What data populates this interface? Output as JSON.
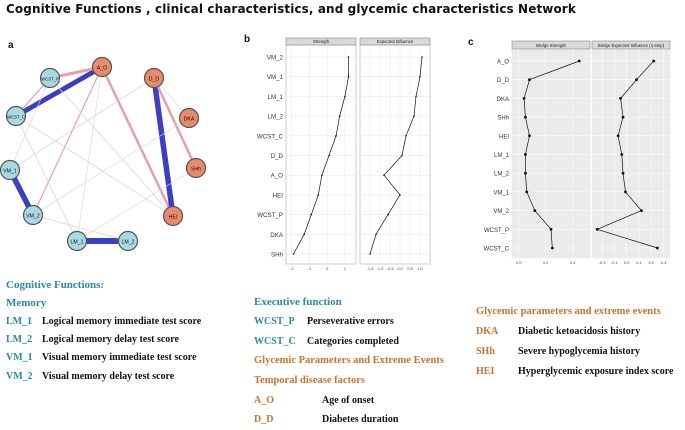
{
  "title": "Cognitive Functions , clinical characteristics, and glycemic characteristics Network",
  "panels": {
    "a": "a",
    "b": "b",
    "c": "c"
  },
  "network": {
    "nodes": [
      {
        "id": "a_o",
        "label": "A_O",
        "group": "glycemic"
      },
      {
        "id": "d_d",
        "label": "D_D",
        "group": "glycemic"
      },
      {
        "id": "dka",
        "label": "DKA",
        "group": "glycemic"
      },
      {
        "id": "shh",
        "label": "SHh",
        "group": "glycemic"
      },
      {
        "id": "hei",
        "label": "HEI",
        "group": "glycemic"
      },
      {
        "id": "lm2",
        "label": "LM_2",
        "group": "cognitive"
      },
      {
        "id": "lm1",
        "label": "LM_1",
        "group": "cognitive"
      },
      {
        "id": "vm2",
        "label": "VM_2",
        "group": "cognitive"
      },
      {
        "id": "vm1",
        "label": "VM_1",
        "group": "cognitive"
      },
      {
        "id": "wcstc",
        "label": "WCST_C",
        "group": "cognitive"
      },
      {
        "id": "wcstp",
        "label": "WCST_P",
        "group": "cognitive"
      }
    ],
    "colors": {
      "cognitive": "#a9d9e3",
      "glycemic": "#e98a6b",
      "positive": "#3b3fc4",
      "negative": "#e3a1ad",
      "weak": "#d6d6dc"
    }
  },
  "chart_data": [
    {
      "type": "line",
      "facets": [
        "Strength",
        "Expected Influence"
      ],
      "categories": [
        "VM_2",
        "VM_1",
        "LM_1",
        "LM_2",
        "WCST_C",
        "D_D",
        "A_O",
        "HEI",
        "WCST_P",
        "DKA",
        "SHh"
      ],
      "series": [
        {
          "name": "Strength",
          "values": [
            1.2,
            1.2,
            1.0,
            0.7,
            0.5,
            0.1,
            -0.3,
            -0.5,
            -0.9,
            -1.3,
            -1.9
          ]
        },
        {
          "name": "Expected Influence",
          "values": [
            1.1,
            1.0,
            0.8,
            0.7,
            0.3,
            0.1,
            -0.8,
            0.0,
            -0.6,
            -1.2,
            -1.5
          ]
        }
      ],
      "xticks": {
        "Strength": [
          "-2",
          "-1",
          "0",
          "1"
        ],
        "Expected Influence": [
          "-1.5",
          "-1.0",
          "-0.5",
          "0.0",
          "0.5",
          "1.0"
        ]
      },
      "xlim": {
        "Strength": [
          -2.1,
          1.4
        ],
        "Expected Influence": [
          -1.8,
          1.3
        ]
      }
    },
    {
      "type": "line",
      "facets": [
        "Bridge Strength",
        "Bridge Expected Influence (1-step)"
      ],
      "categories": [
        "A_O",
        "D_D",
        "DKA",
        "SHh",
        "HEI",
        "LM_1",
        "LM_2",
        "VM_1",
        "VM_2",
        "WCST_P",
        "WCST_C"
      ],
      "series": [
        {
          "name": "Bridge Strength",
          "values": [
            0.45,
            0.08,
            0.04,
            0.05,
            0.08,
            0.05,
            0.05,
            0.06,
            0.12,
            0.24,
            0.25
          ]
        },
        {
          "name": "Bridge Expected Influence (1-step)",
          "values": [
            0.22,
            0.08,
            -0.05,
            -0.03,
            -0.07,
            -0.04,
            -0.03,
            -0.01,
            0.12,
            -0.24,
            0.25
          ]
        }
      ],
      "xticks": {
        "Bridge Strength": [
          "0.0",
          "0.2",
          "0.4"
        ],
        "Bridge Expected Influence (1-step)": [
          "-0.2",
          "-0.1",
          "0.0",
          "0.1",
          "0.2",
          "0.3"
        ]
      },
      "xlim": {
        "Bridge Strength": [
          -0.02,
          0.5
        ],
        "Bridge Expected Influence (1-step)": [
          -0.25,
          0.32
        ]
      }
    }
  ],
  "legend_a": {
    "heading": "Cognitive Functions:",
    "subheading": "Memory",
    "items": [
      {
        "abbr": "LM_1",
        "desc": "Logical memory immediate test score"
      },
      {
        "abbr": "LM_2",
        "desc": "Logical memory delay test score"
      },
      {
        "abbr": "VM_1",
        "desc": "Visual memory immediate test score"
      },
      {
        "abbr": "VM_2",
        "desc": "Visual memory delay test score"
      }
    ]
  },
  "legend_b": {
    "heading": "Executive function",
    "items": [
      {
        "abbr": "WCST_P",
        "desc": "Perseverative errors"
      },
      {
        "abbr": "WCST_C",
        "desc": "Categories completed"
      }
    ],
    "heading2": "Glycemic Parameters and Extreme Events",
    "heading3": "Temporal disease factors",
    "items2": [
      {
        "abbr": "A_O",
        "desc": "Age of onset"
      },
      {
        "abbr": "D_D",
        "desc": "Diabetes duration"
      }
    ]
  },
  "legend_c": {
    "heading": "Glycemic parameters and extreme events",
    "items": [
      {
        "abbr": "DKA",
        "desc": "Diabetic ketoacidosis history"
      },
      {
        "abbr": "SHh",
        "desc": "Severe hypoglycemia history"
      },
      {
        "abbr": "HEI",
        "desc": "Hyperglycemic exposure index score"
      }
    ]
  }
}
